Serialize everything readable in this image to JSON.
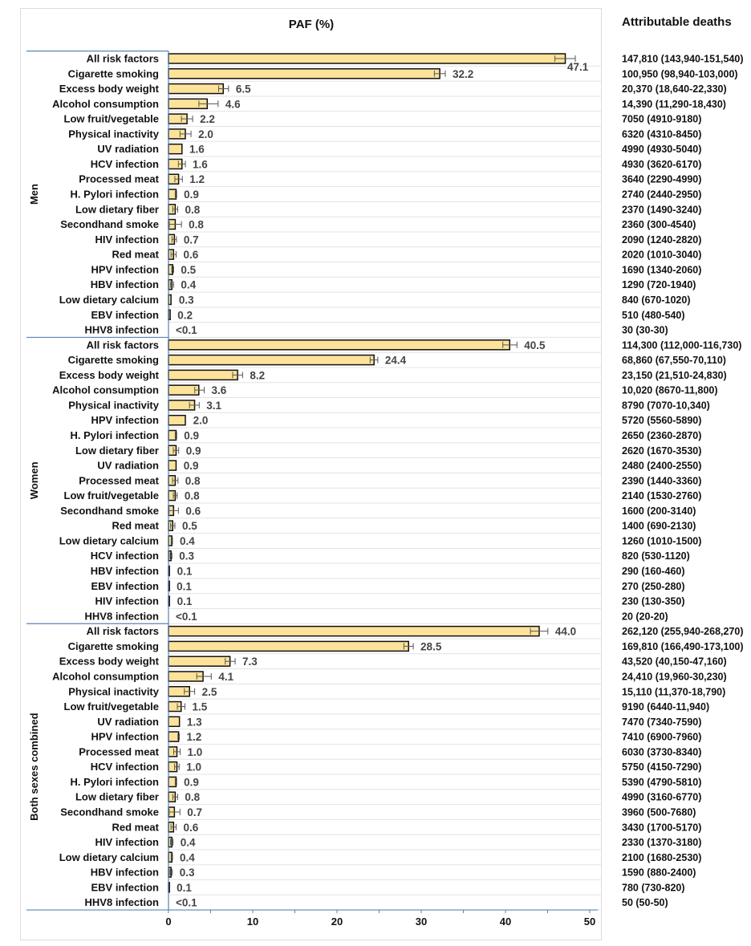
{
  "chart_data": {
    "type": "bar",
    "orientation": "horizontal",
    "title": "PAF (%)",
    "right_column_title": "Attributable deaths",
    "xlim": [
      0,
      50
    ],
    "xticks": [
      0,
      10,
      20,
      30,
      40,
      50
    ],
    "grid": true,
    "bar_color": "#fde39a",
    "groups": [
      {
        "name": "Men",
        "rows": [
          {
            "label": "All risk factors",
            "value": 47.1,
            "value_label": "47.1",
            "deaths": "147,810 (143,940-151,540)"
          },
          {
            "label": "Cigarette smoking",
            "value": 32.2,
            "value_label": "32.2",
            "deaths": "100,950 (98,940-103,000)"
          },
          {
            "label": "Excess body weight",
            "value": 6.5,
            "value_label": "6.5",
            "deaths": "20,370 (18,640-22,330)"
          },
          {
            "label": "Alcohol consumption",
            "value": 4.6,
            "value_label": "4.6",
            "deaths": "14,390 (11,290-18,430)"
          },
          {
            "label": "Low fruit/vegetable",
            "value": 2.2,
            "value_label": "2.2",
            "deaths": "7050 (4910-9180)"
          },
          {
            "label": "Physical inactivity",
            "value": 2.0,
            "value_label": "2.0",
            "deaths": "6320 (4310-8450)"
          },
          {
            "label": "UV radiation",
            "value": 1.6,
            "value_label": "1.6",
            "deaths": "4990 (4930-5040)"
          },
          {
            "label": "HCV infection",
            "value": 1.6,
            "value_label": "1.6",
            "deaths": "4930 (3620-6170)"
          },
          {
            "label": "Processed meat",
            "value": 1.2,
            "value_label": "1.2",
            "deaths": "3640 (2290-4990)"
          },
          {
            "label": "H. Pylori infection",
            "value": 0.9,
            "value_label": "0.9",
            "deaths": "2740 (2440-2950)"
          },
          {
            "label": "Low dietary fiber",
            "value": 0.8,
            "value_label": "0.8",
            "deaths": "2370 (1490-3240)"
          },
          {
            "label": "Secondhand smoke",
            "value": 0.8,
            "value_label": "0.8",
            "deaths": "2360 (300-4540)"
          },
          {
            "label": "HIV infection",
            "value": 0.7,
            "value_label": "0.7",
            "deaths": "2090 (1240-2820)"
          },
          {
            "label": "Red meat",
            "value": 0.6,
            "value_label": "0.6",
            "deaths": "2020 (1010-3040)"
          },
          {
            "label": "HPV infection",
            "value": 0.5,
            "value_label": "0.5",
            "deaths": "1690 (1340-2060)"
          },
          {
            "label": "HBV infection",
            "value": 0.4,
            "value_label": "0.4",
            "deaths": "1290 (720-1940)"
          },
          {
            "label": "Low dietary calcium",
            "value": 0.3,
            "value_label": "0.3",
            "deaths": "840 (670-1020)"
          },
          {
            "label": "EBV infection",
            "value": 0.2,
            "value_label": "0.2",
            "deaths": "510 (480-540)"
          },
          {
            "label": "HHV8 infection",
            "value": 0.0,
            "value_label": "<0.1",
            "deaths": "30 (30-30)"
          }
        ]
      },
      {
        "name": "Women",
        "rows": [
          {
            "label": "All risk factors",
            "value": 40.5,
            "value_label": "40.5",
            "deaths": "114,300 (112,000-116,730)"
          },
          {
            "label": "Cigarette smoking",
            "value": 24.4,
            "value_label": "24.4",
            "deaths": "68,860 (67,550-70,110)"
          },
          {
            "label": "Excess body weight",
            "value": 8.2,
            "value_label": "8.2",
            "deaths": "23,150 (21,510-24,830)"
          },
          {
            "label": "Alcohol consumption",
            "value": 3.6,
            "value_label": "3.6",
            "deaths": "10,020 (8670-11,800)"
          },
          {
            "label": "Physical inactivity",
            "value": 3.1,
            "value_label": "3.1",
            "deaths": "8790 (7070-10,340)"
          },
          {
            "label": "HPV infection",
            "value": 2.0,
            "value_label": "2.0",
            "deaths": "5720 (5560-5890)"
          },
          {
            "label": "H. Pylori infection",
            "value": 0.9,
            "value_label": "0.9",
            "deaths": "2650 (2360-2870)"
          },
          {
            "label": "Low dietary fiber",
            "value": 0.9,
            "value_label": "0.9",
            "deaths": "2620 (1670-3530)"
          },
          {
            "label": "UV radiation",
            "value": 0.9,
            "value_label": "0.9",
            "deaths": "2480 (2400-2550)"
          },
          {
            "label": "Processed meat",
            "value": 0.8,
            "value_label": "0.8",
            "deaths": "2390 (1440-3360)"
          },
          {
            "label": "Low fruit/vegetable",
            "value": 0.8,
            "value_label": "0.8",
            "deaths": "2140 (1530-2760)"
          },
          {
            "label": "Secondhand smoke",
            "value": 0.6,
            "value_label": "0.6",
            "deaths": "1600 (200-3140)"
          },
          {
            "label": "Red meat",
            "value": 0.5,
            "value_label": "0.5",
            "deaths": "1400 (690-2130)"
          },
          {
            "label": "Low dietary calcium",
            "value": 0.4,
            "value_label": "0.4",
            "deaths": "1260 (1010-1500)"
          },
          {
            "label": "HCV infection",
            "value": 0.3,
            "value_label": "0.3",
            "deaths": "820 (530-1120)"
          },
          {
            "label": "HBV infection",
            "value": 0.1,
            "value_label": "0.1",
            "deaths": "290 (160-460)"
          },
          {
            "label": "EBV infection",
            "value": 0.1,
            "value_label": "0.1",
            "deaths": "270 (250-280)"
          },
          {
            "label": "HIV infection",
            "value": 0.1,
            "value_label": "0.1",
            "deaths": "230 (130-350)"
          },
          {
            "label": "HHV8 infection",
            "value": 0.0,
            "value_label": "<0.1",
            "deaths": "20 (20-20)"
          }
        ]
      },
      {
        "name": "Both sexes combined",
        "rows": [
          {
            "label": "All risk factors",
            "value": 44.0,
            "value_label": "44.0",
            "deaths": "262,120 (255,940-268,270)"
          },
          {
            "label": "Cigarette smoking",
            "value": 28.5,
            "value_label": "28.5",
            "deaths": "169,810 (166,490-173,100)"
          },
          {
            "label": "Excess body weight",
            "value": 7.3,
            "value_label": "7.3",
            "deaths": "43,520 (40,150-47,160)"
          },
          {
            "label": "Alcohol consumption",
            "value": 4.1,
            "value_label": "4.1",
            "deaths": "24,410 (19,960-30,230)"
          },
          {
            "label": "Physical inactivity",
            "value": 2.5,
            "value_label": "2.5",
            "deaths": "15,110 (11,370-18,790)"
          },
          {
            "label": "Low fruit/vegetable",
            "value": 1.5,
            "value_label": "1.5",
            "deaths": "9190 (6440-11,940)"
          },
          {
            "label": "UV radiation",
            "value": 1.3,
            "value_label": "1.3",
            "deaths": "7470 (7340-7590)"
          },
          {
            "label": "HPV infection",
            "value": 1.2,
            "value_label": "1.2",
            "deaths": "7410 (6900-7960)"
          },
          {
            "label": "Processed meat",
            "value": 1.0,
            "value_label": "1.0",
            "deaths": "6030 (3730-8340)"
          },
          {
            "label": "HCV infection",
            "value": 1.0,
            "value_label": "1.0",
            "deaths": "5750 (4150-7290)"
          },
          {
            "label": "H. Pylori infection",
            "value": 0.9,
            "value_label": "0.9",
            "deaths": "5390 (4790-5810)"
          },
          {
            "label": "Low dietary fiber",
            "value": 0.8,
            "value_label": "0.8",
            "deaths": "4990 (3160-6770)"
          },
          {
            "label": "Secondhand smoke",
            "value": 0.7,
            "value_label": "0.7",
            "deaths": "3960 (500-7680)"
          },
          {
            "label": "Red meat",
            "value": 0.6,
            "value_label": "0.6",
            "deaths": "3430 (1700-5170)"
          },
          {
            "label": "HIV infection",
            "value": 0.4,
            "value_label": "0.4",
            "deaths": "2330 (1370-3180)"
          },
          {
            "label": "Low dietary calcium",
            "value": 0.4,
            "value_label": "0.4",
            "deaths": "2100 (1680-2530)"
          },
          {
            "label": "HBV infection",
            "value": 0.3,
            "value_label": "0.3",
            "deaths": "1590 (880-2400)"
          },
          {
            "label": "EBV infection",
            "value": 0.1,
            "value_label": "0.1",
            "deaths": "780 (730-820)"
          },
          {
            "label": "HHV8 infection",
            "value": 0.0,
            "value_label": "<0.1",
            "deaths": "50 (50-50)"
          }
        ]
      }
    ]
  }
}
